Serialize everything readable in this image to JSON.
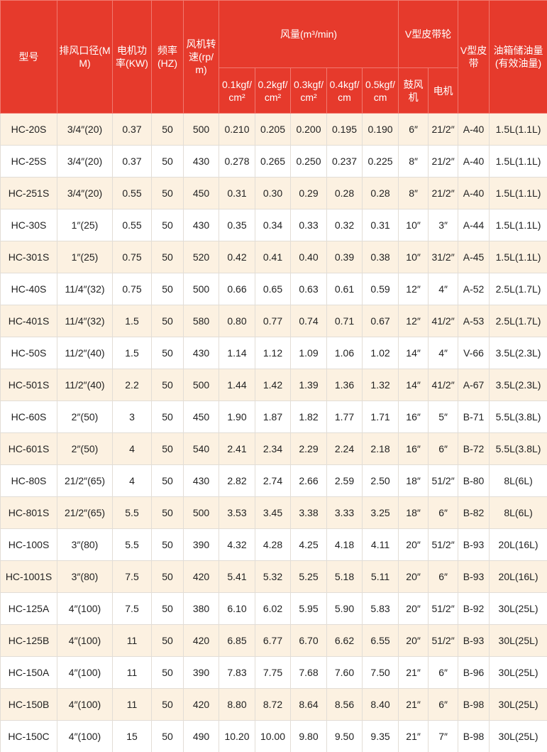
{
  "header": {
    "row1": [
      "型号",
      "排风口径(MM)",
      "电机功率(KW)",
      "频率(HZ)",
      "风机转速(rp/m)",
      "风量(m³/min)",
      "V型皮带轮",
      "V型皮带",
      "油箱储油量(有效油量)"
    ],
    "row2": [
      "0.1kgf/cm²",
      "0.2kgf/cm²",
      "0.3kgf/cm²",
      "0.4kgf/cm",
      "0.5kgf/cm",
      "鼓风机",
      "电机"
    ]
  },
  "table": {
    "rows": [
      [
        "HC-20S",
        "3/4″(20)",
        "0.37",
        "50",
        "500",
        "0.210",
        "0.205",
        "0.200",
        "0.195",
        "0.190",
        "6″",
        "21/2″",
        "A-40",
        "1.5L(1.1L)"
      ],
      [
        "HC-25S",
        "3/4″(20)",
        "0.37",
        "50",
        "430",
        "0.278",
        "0.265",
        "0.250",
        "0.237",
        "0.225",
        "8″",
        "21/2″",
        "A-40",
        "1.5L(1.1L)"
      ],
      [
        "HC-251S",
        "3/4″(20)",
        "0.55",
        "50",
        "450",
        "0.31",
        "0.30",
        "0.29",
        "0.28",
        "0.28",
        "8″",
        "21/2″",
        "A-40",
        "1.5L(1.1L)"
      ],
      [
        "HC-30S",
        "1″(25)",
        "0.55",
        "50",
        "430",
        "0.35",
        "0.34",
        "0.33",
        "0.32",
        "0.31",
        "10″",
        "3″",
        "A-44",
        "1.5L(1.1L)"
      ],
      [
        "HC-301S",
        "1″(25)",
        "0.75",
        "50",
        "520",
        "0.42",
        "0.41",
        "0.40",
        "0.39",
        "0.38",
        "10″",
        "31/2″",
        "A-45",
        "1.5L(1.1L)"
      ],
      [
        "HC-40S",
        "11/4″(32)",
        "0.75",
        "50",
        "500",
        "0.66",
        "0.65",
        "0.63",
        "0.61",
        "0.59",
        "12″",
        "4″",
        "A-52",
        "2.5L(1.7L)"
      ],
      [
        "HC-401S",
        "11/4″(32)",
        "1.5",
        "50",
        "580",
        "0.80",
        "0.77",
        "0.74",
        "0.71",
        "0.67",
        "12″",
        "41/2″",
        "A-53",
        "2.5L(1.7L)"
      ],
      [
        "HC-50S",
        "11/2″(40)",
        "1.5",
        "50",
        "430",
        "1.14",
        "1.12",
        "1.09",
        "1.06",
        "1.02",
        "14″",
        "4″",
        "V-66",
        "3.5L(2.3L)"
      ],
      [
        "HC-501S",
        "11/2″(40)",
        "2.2",
        "50",
        "500",
        "1.44",
        "1.42",
        "1.39",
        "1.36",
        "1.32",
        "14″",
        "41/2″",
        "A-67",
        "3.5L(2.3L)"
      ],
      [
        "HC-60S",
        "2″(50)",
        "3",
        "50",
        "450",
        "1.90",
        "1.87",
        "1.82",
        "1.77",
        "1.71",
        "16″",
        "5″",
        "B-71",
        "5.5L(3.8L)"
      ],
      [
        "HC-601S",
        "2″(50)",
        "4",
        "50",
        "540",
        "2.41",
        "2.34",
        "2.29",
        "2.24",
        "2.18",
        "16″",
        "6″",
        "B-72",
        "5.5L(3.8L)"
      ],
      [
        "HC-80S",
        "21/2″(65)",
        "4",
        "50",
        "430",
        "2.82",
        "2.74",
        "2.66",
        "2.59",
        "2.50",
        "18″",
        "51/2″",
        "B-80",
        "8L(6L)"
      ],
      [
        "HC-801S",
        "21/2″(65)",
        "5.5",
        "50",
        "500",
        "3.53",
        "3.45",
        "3.38",
        "3.33",
        "3.25",
        "18″",
        "6″",
        "B-82",
        "8L(6L)"
      ],
      [
        "HC-100S",
        "3″(80)",
        "5.5",
        "50",
        "390",
        "4.32",
        "4.28",
        "4.25",
        "4.18",
        "4.11",
        "20″",
        "51/2″",
        "B-93",
        "20L(16L)"
      ],
      [
        "HC-1001S",
        "3″(80)",
        "7.5",
        "50",
        "420",
        "5.41",
        "5.32",
        "5.25",
        "5.18",
        "5.11",
        "20″",
        "6″",
        "B-93",
        "20L(16L)"
      ],
      [
        "HC-125A",
        "4″(100)",
        "7.5",
        "50",
        "380",
        "6.10",
        "6.02",
        "5.95",
        "5.90",
        "5.83",
        "20″",
        "51/2″",
        "B-92",
        "30L(25L)"
      ],
      [
        "HC-125B",
        "4″(100)",
        "11",
        "50",
        "420",
        "6.85",
        "6.77",
        "6.70",
        "6.62",
        "6.55",
        "20″",
        "51/2″",
        "B-93",
        "30L(25L)"
      ],
      [
        "HC-150A",
        "4″(100)",
        "11",
        "50",
        "390",
        "7.83",
        "7.75",
        "7.68",
        "7.60",
        "7.50",
        "21″",
        "6″",
        "B-96",
        "30L(25L)"
      ],
      [
        "HC-150B",
        "4″(100)",
        "11",
        "50",
        "420",
        "8.80",
        "8.72",
        "8.64",
        "8.56",
        "8.40",
        "21″",
        "6″",
        "B-98",
        "30L(25L)"
      ],
      [
        "HC-150C",
        "4″(100)",
        "15",
        "50",
        "490",
        "10.20",
        "10.00",
        "9.80",
        "9.50",
        "9.35",
        "21″",
        "7″",
        "B-98",
        "30L(25L)"
      ]
    ]
  }
}
